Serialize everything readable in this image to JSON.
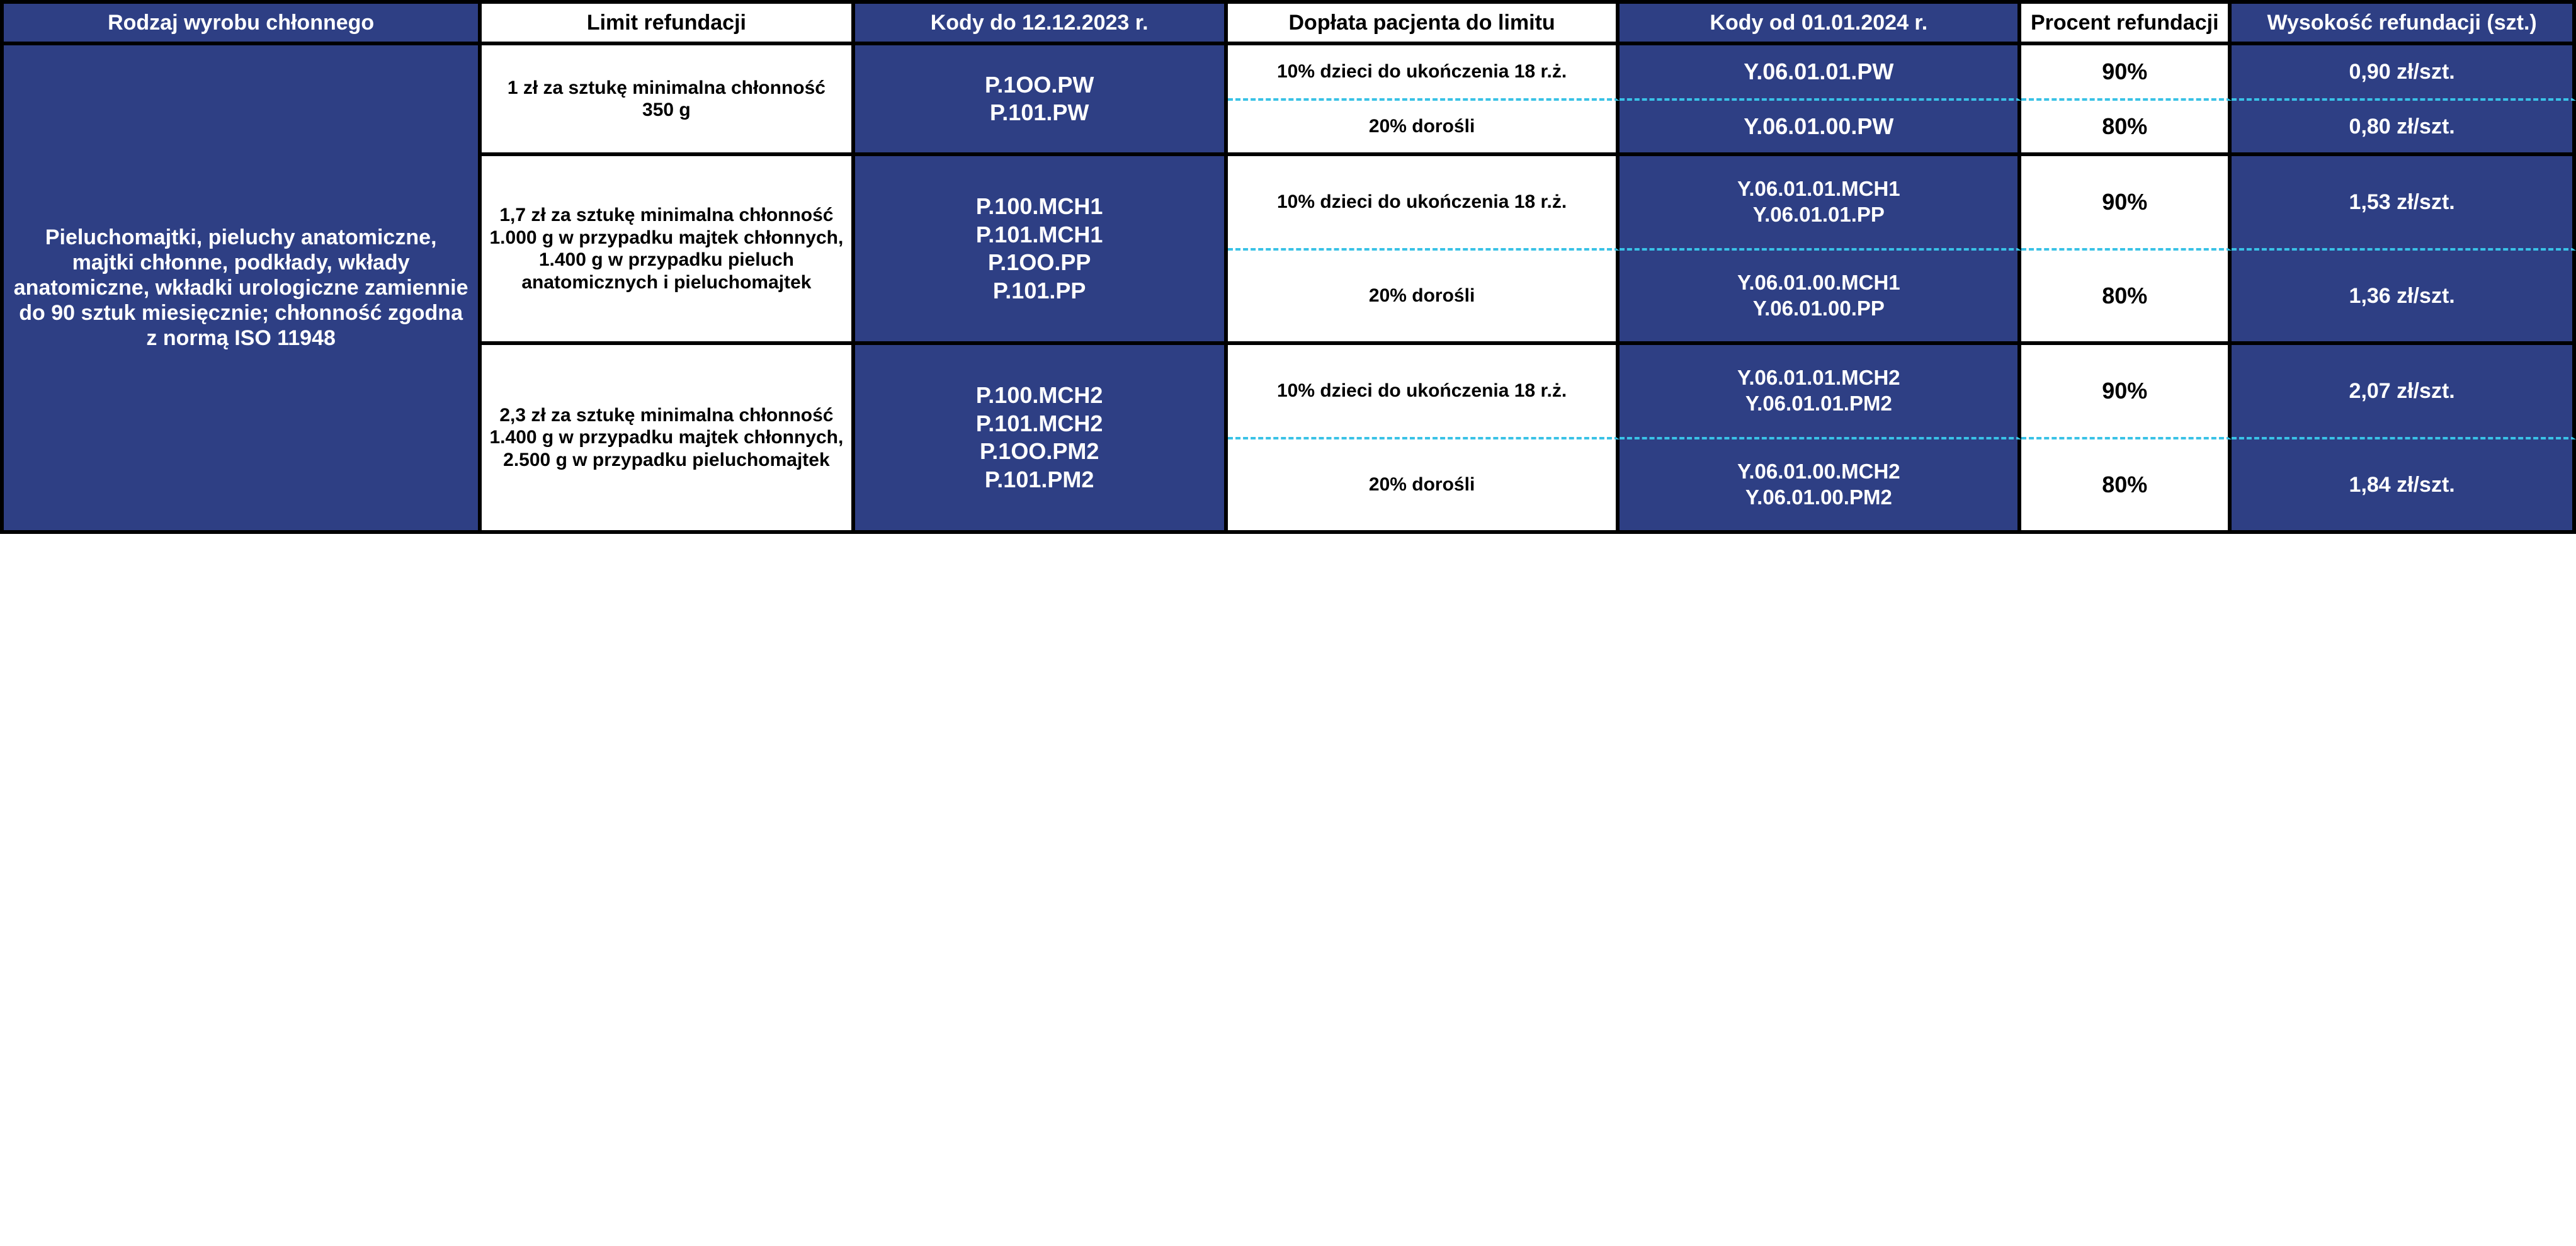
{
  "colors": {
    "blue_bg": "#2e3f84",
    "white_bg": "#ffffff",
    "text_on_blue": "#ffffff",
    "text_on_white": "#000000",
    "border": "#000000",
    "dash": "#39c2e6"
  },
  "headers": {
    "col1": "Rodzaj wyrobu chłonnego",
    "col2": "Limit refundacji",
    "col3": "Kody do 12.12.2023 r.",
    "col4": "Dopłata pacjenta do limitu",
    "col5": "Kody od 01.01.2024 r.",
    "col6": "Procent refundacji",
    "col7": "Wysokość refundacji (szt.)"
  },
  "row_label": "Pieluchomajtki, pieluchy anatomiczne, majtki chłonne, podkłady, wkłady anatomiczne, wkładki urologiczne zamiennie do 90 sztuk miesięcznie; chłonność zgodna z normą ISO 11948",
  "groups": [
    {
      "limit": "1 zł za sztukę minimalna chłonność 350 g",
      "codes_old": [
        "P.1OO.PW",
        "P.101.PW"
      ],
      "child": {
        "doplata": "10% dzieci do ukończenia 18 r.ż.",
        "codes_new": [
          "Y.06.01.01.PW"
        ],
        "percent": "90%",
        "amount": "0,90 zł/szt."
      },
      "adult": {
        "doplata": "20% dorośli",
        "codes_new": [
          "Y.06.01.00.PW"
        ],
        "percent": "80%",
        "amount": "0,80 zł/szt."
      }
    },
    {
      "limit": "1,7 zł za sztukę minimalna chłonność 1.000 g w przypadku majtek chłonnych, 1.400 g w przypadku pieluch anatomicznych i pieluchomajtek",
      "codes_old": [
        "P.100.MCH1",
        "P.101.MCH1",
        "P.1OO.PP",
        "P.101.PP"
      ],
      "child": {
        "doplata": "10% dzieci do ukończenia 18 r.ż.",
        "codes_new": [
          "Y.06.01.01.MCH1",
          "Y.06.01.01.PP"
        ],
        "percent": "90%",
        "amount": "1,53 zł/szt."
      },
      "adult": {
        "doplata": "20% dorośli",
        "codes_new": [
          "Y.06.01.00.MCH1",
          "Y.06.01.00.PP"
        ],
        "percent": "80%",
        "amount": "1,36 zł/szt."
      }
    },
    {
      "limit": "2,3 zł za sztukę minimalna chłonność 1.400 g w przypadku majtek chłonnych, 2.500 g w przypadku pieluchomajtek",
      "codes_old": [
        "P.100.MCH2",
        "P.101.MCH2",
        "P.1OO.PM2",
        "P.101.PM2"
      ],
      "child": {
        "doplata": "10% dzieci do ukończenia 18 r.ż.",
        "codes_new": [
          "Y.06.01.01.MCH2",
          "Y.06.01.01.PM2"
        ],
        "percent": "90%",
        "amount": "2,07 zł/szt."
      },
      "adult": {
        "doplata": "20% dorośli",
        "codes_new": [
          "Y.06.01.00.MCH2",
          "Y.06.01.00.PM2"
        ],
        "percent": "80%",
        "amount": "1,84 zł/szt."
      }
    }
  ]
}
